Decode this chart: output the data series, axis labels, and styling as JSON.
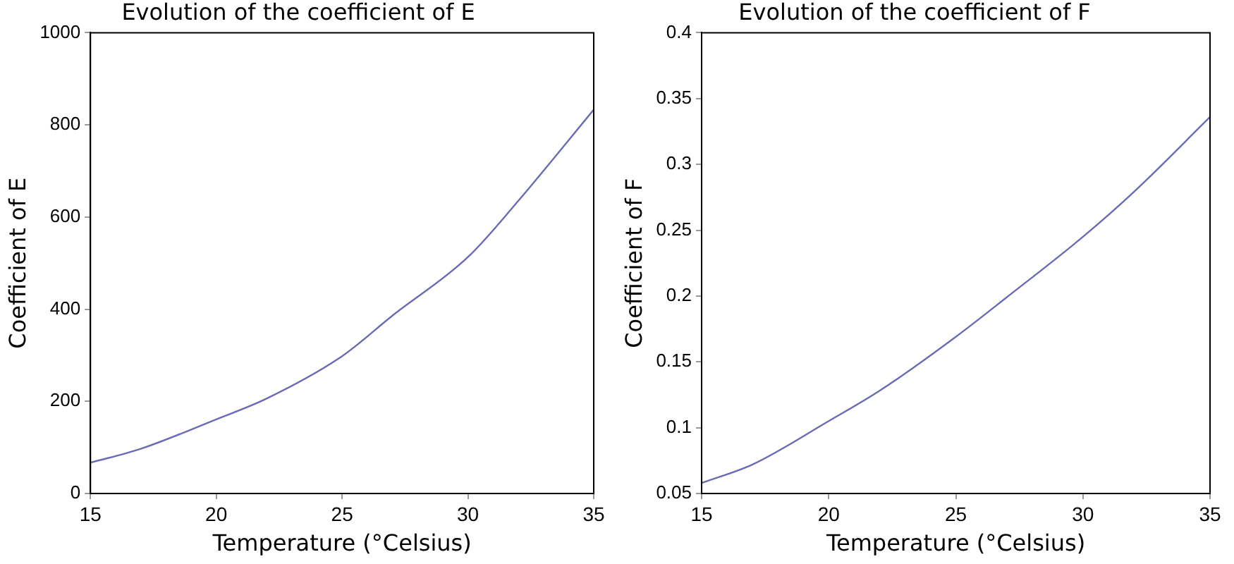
{
  "chart_data": [
    {
      "type": "line",
      "title": "Evolution of the coefficient of E",
      "xlabel": "Temperature (°Celsius)",
      "ylabel": "Coefficient of E",
      "x": [
        15,
        17,
        20,
        22,
        25,
        27,
        30,
        32,
        35
      ],
      "series": [
        {
          "color": "#6b6bb5",
          "values": [
            67,
            97,
            161,
            206,
            298,
            386,
            513,
            635,
            833
          ]
        }
      ],
      "xlim": [
        15,
        35
      ],
      "xticks": [
        15,
        20,
        25,
        30,
        35
      ],
      "ylim": [
        0,
        1000
      ],
      "yticks": [
        0,
        200,
        400,
        600,
        800,
        1000
      ],
      "grid": false,
      "legend": false,
      "marker": "none",
      "line_style": "solid"
    },
    {
      "type": "line",
      "title": "Evolution of the coefficient of F",
      "xlabel": "Temperature (°Celsius)",
      "ylabel": "Coefficient of F",
      "x": [
        15,
        17,
        20,
        22,
        25,
        27,
        30,
        32,
        35
      ],
      "series": [
        {
          "color": "#6b6bb5",
          "values": [
            0.058,
            0.072,
            0.105,
            0.128,
            0.169,
            0.199,
            0.245,
            0.279,
            0.336
          ]
        }
      ],
      "xlim": [
        15,
        35
      ],
      "xticks": [
        15,
        20,
        25,
        30,
        35
      ],
      "ylim": [
        0.05,
        0.4
      ],
      "yticks": [
        0.05,
        0.1,
        0.15,
        0.2,
        0.25,
        0.3,
        0.35,
        0.4
      ],
      "grid": false,
      "legend": false,
      "marker": "none",
      "line_style": "solid"
    }
  ]
}
